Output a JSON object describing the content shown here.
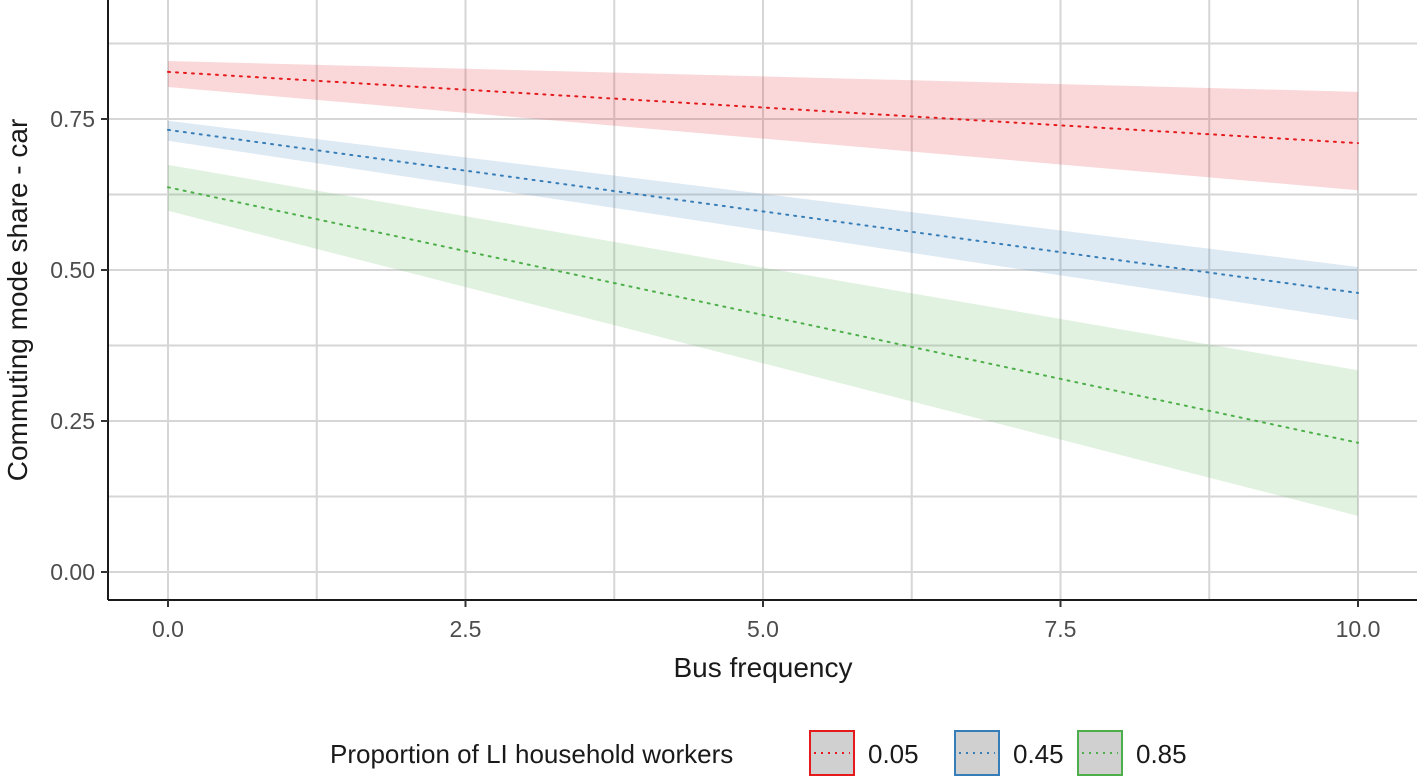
{
  "chart_data": {
    "type": "line",
    "title": "",
    "xlabel": "Bus frequency",
    "ylabel": "Commuting mode share - car",
    "xlim": [
      -1.35,
      10.5
    ],
    "ylim": [
      -0.047,
      0.947
    ],
    "x_ticks": [
      0,
      2.5,
      5,
      7.5,
      10
    ],
    "x_tick_labels": [
      "0.0",
      "2.5",
      "5.0",
      "7.5",
      "10.0"
    ],
    "y_ticks": [
      0,
      0.25,
      0.5,
      0.75
    ],
    "y_tick_labels": [
      "0.00",
      "0.25",
      "0.50",
      "0.75"
    ],
    "grid": true,
    "line_style": "dotted",
    "legend": {
      "title": "Proportion of LI household workers",
      "placement": "bottom"
    },
    "x": [
      0,
      10
    ],
    "series": [
      {
        "name": "0.05",
        "color": "#e41a1c",
        "values": [
          0.828,
          0.71
        ],
        "lower": [
          0.803,
          0.632
        ],
        "upper": [
          0.846,
          0.795
        ]
      },
      {
        "name": "0.45",
        "color": "#377eb8",
        "values": [
          0.732,
          0.462
        ],
        "lower": [
          0.714,
          0.417
        ],
        "upper": [
          0.747,
          0.505
        ]
      },
      {
        "name": "0.85",
        "color": "#4daf4a",
        "values": [
          0.637,
          0.214
        ],
        "lower": [
          0.598,
          0.093
        ],
        "upper": [
          0.674,
          0.334
        ]
      }
    ]
  }
}
